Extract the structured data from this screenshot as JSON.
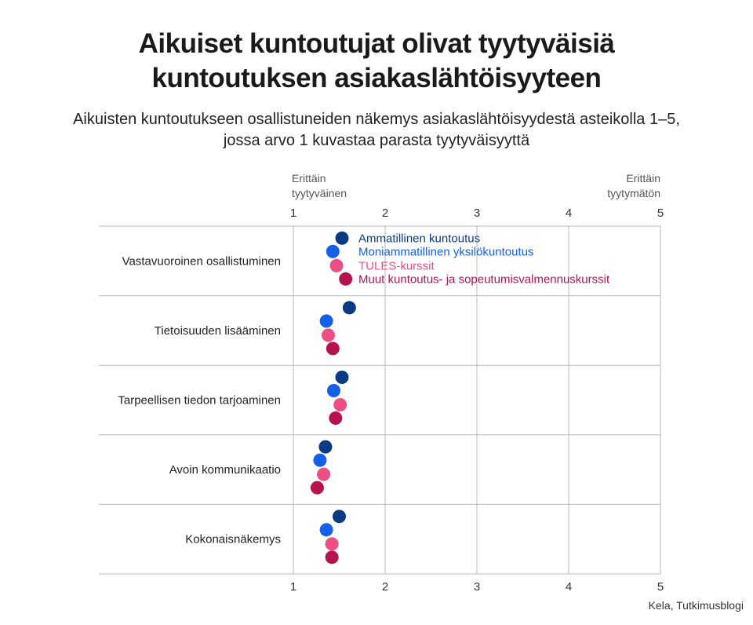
{
  "header": {
    "title_line1": "Aikuiset kuntoutujat olivat tyytyväisiä",
    "title_line2": "kuntoutuksen asiakaslähtöisyyteen",
    "subtitle_line1": "Aikuisten kuntoutukseen osallistuneiden näkemys asiakaslähtöisyydestä asteikolla 1–5,",
    "subtitle_line2": "jossa arvo 1 kuvastaa parasta tyytyväisyyttä"
  },
  "source": "Kela, Tutkimusblogi",
  "chart_data": {
    "type": "scatter",
    "orientation": "horizontal dot plot",
    "xlim": [
      1,
      5
    ],
    "x_ticks": [
      1,
      2,
      3,
      4,
      5
    ],
    "x_end_labels": {
      "left": [
        "Erittäin",
        "tyytyväinen"
      ],
      "right": [
        "Erittäin",
        "tyytymätön"
      ]
    },
    "categories": [
      "Vastavuoroinen osallistuminen",
      "Tietoisuuden lisääminen",
      "Tarpeellisen tiedon tarjoaminen",
      "Avoin kommunikaatio",
      "Kokonaisnäkemys"
    ],
    "grid": true,
    "legend_position": "inside-top",
    "series": [
      {
        "name": "Ammatillinen kuntoutus",
        "color": "#0a3a82",
        "values": [
          1.53,
          1.61,
          1.53,
          1.35,
          1.5
        ]
      },
      {
        "name": "Moniammatillinen yksilökuntoutus",
        "color": "#1560e8",
        "values": [
          1.43,
          1.36,
          1.44,
          1.29,
          1.36
        ]
      },
      {
        "name": "TULES-kurssit",
        "color": "#ec4f86",
        "values": [
          1.47,
          1.38,
          1.51,
          1.33,
          1.42
        ]
      },
      {
        "name": "Muut kuntoutus- ja sopeutumisvalmennuskurssit",
        "color": "#b5134f",
        "values": [
          1.57,
          1.43,
          1.46,
          1.26,
          1.42
        ]
      }
    ]
  }
}
